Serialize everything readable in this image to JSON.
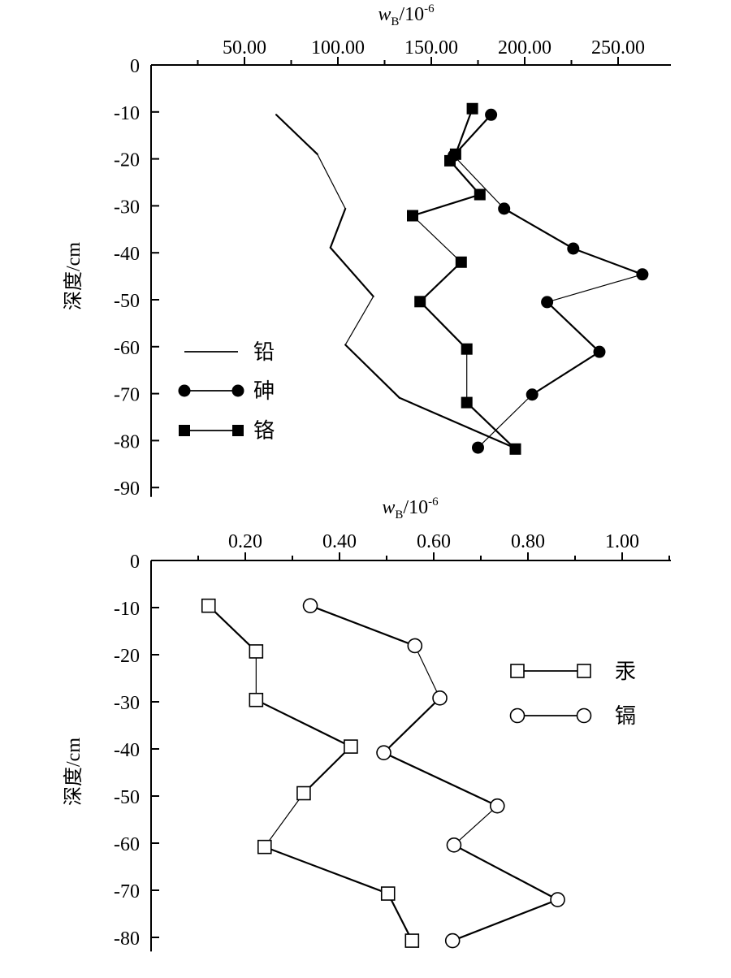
{
  "chart_data": [
    {
      "type": "line",
      "panel": "top",
      "x_axis": {
        "label_var": "w",
        "label_sub": "B",
        "label_unit": "/10",
        "label_exp": "-6",
        "ticks": [
          50,
          100,
          150,
          200,
          250
        ],
        "tick_labels": [
          "50.00",
          "100.00",
          "150.00",
          "200.00",
          "250.00"
        ],
        "range": [
          0,
          275
        ],
        "position": "top"
      },
      "y_axis": {
        "label": "深度/cm",
        "ticks": [
          0,
          -10,
          -20,
          -30,
          -40,
          -50,
          -60,
          -70,
          -80,
          -90
        ],
        "tick_labels": [
          "0",
          "-10",
          "-20",
          "-30",
          "-40",
          "-50",
          "-60",
          "-70",
          "-80",
          "-90"
        ],
        "range": [
          -92,
          0
        ]
      },
      "legend": {
        "position": "left-middle"
      },
      "series": [
        {
          "name": "铅",
          "marker": "none",
          "points": [
            {
              "x": 67,
              "y": -10.6
            },
            {
              "x": 89,
              "y": -19
            },
            {
              "x": 104,
              "y": -30.6
            },
            {
              "x": 96,
              "y": -38.9
            },
            {
              "x": 119,
              "y": -49.3
            },
            {
              "x": 104,
              "y": -59.6
            },
            {
              "x": 133,
              "y": -70.9
            },
            {
              "x": 196,
              "y": -81.8
            }
          ]
        },
        {
          "name": "砷",
          "marker": "filled-circle",
          "points": [
            {
              "x": 182,
              "y": -10.6
            },
            {
              "x": 162,
              "y": -19.3
            },
            {
              "x": 189,
              "y": -30.6
            },
            {
              "x": 226,
              "y": -39.1
            },
            {
              "x": 263,
              "y": -44.6
            },
            {
              "x": 212,
              "y": -50.5
            },
            {
              "x": 240,
              "y": -61.1
            },
            {
              "x": 204,
              "y": -70.2
            },
            {
              "x": 175,
              "y": -81.5
            }
          ]
        },
        {
          "name": "铬",
          "marker": "filled-square",
          "points": [
            {
              "x": 172,
              "y": -9.3
            },
            {
              "x": 163,
              "y": -19.0
            },
            {
              "x": 160,
              "y": -20.4
            },
            {
              "x": 176,
              "y": -27.6
            },
            {
              "x": 140,
              "y": -32.1
            },
            {
              "x": 166,
              "y": -42.0
            },
            {
              "x": 144,
              "y": -50.4
            },
            {
              "x": 169,
              "y": -60.5
            },
            {
              "x": 169,
              "y": -71.9
            },
            {
              "x": 195,
              "y": -81.8
            }
          ]
        }
      ]
    },
    {
      "type": "line",
      "panel": "bottom",
      "x_axis": {
        "label_var": "w",
        "label_sub": "B",
        "label_unit": "/10",
        "label_exp": "-6",
        "ticks": [
          0.2,
          0.4,
          0.6,
          0.8,
          1.0
        ],
        "tick_labels": [
          "0.20",
          "0.40",
          "0.60",
          "0.80",
          "1.00"
        ],
        "range": [
          0,
          1.11
        ],
        "position": "top"
      },
      "y_axis": {
        "label": "深度/cm",
        "ticks": [
          0,
          -10,
          -20,
          -30,
          -40,
          -50,
          -60,
          -70,
          -80
        ],
        "tick_labels": [
          "0",
          "-10",
          "-20",
          "-30",
          "-40",
          "-50",
          "-60",
          "-70",
          "-80"
        ],
        "range": [
          -83,
          0
        ]
      },
      "legend": {
        "position": "top-right"
      },
      "series": [
        {
          "name": "汞",
          "marker": "open-square",
          "points": [
            {
              "x": 0.122,
              "y": -9.6
            },
            {
              "x": 0.223,
              "y": -19.3
            },
            {
              "x": 0.223,
              "y": -29.6
            },
            {
              "x": 0.424,
              "y": -39.5
            },
            {
              "x": 0.324,
              "y": -49.4
            },
            {
              "x": 0.241,
              "y": -60.8
            },
            {
              "x": 0.503,
              "y": -70.7
            },
            {
              "x": 0.554,
              "y": -80.7
            }
          ]
        },
        {
          "name": "镉",
          "marker": "open-circle",
          "points": [
            {
              "x": 0.338,
              "y": -9.6
            },
            {
              "x": 0.56,
              "y": -18.1
            },
            {
              "x": 0.613,
              "y": -29.2
            },
            {
              "x": 0.494,
              "y": -40.8
            },
            {
              "x": 0.735,
              "y": -52.1
            },
            {
              "x": 0.643,
              "y": -60.4
            },
            {
              "x": 0.863,
              "y": -72.0
            },
            {
              "x": 0.64,
              "y": -80.7
            }
          ]
        }
      ]
    }
  ]
}
